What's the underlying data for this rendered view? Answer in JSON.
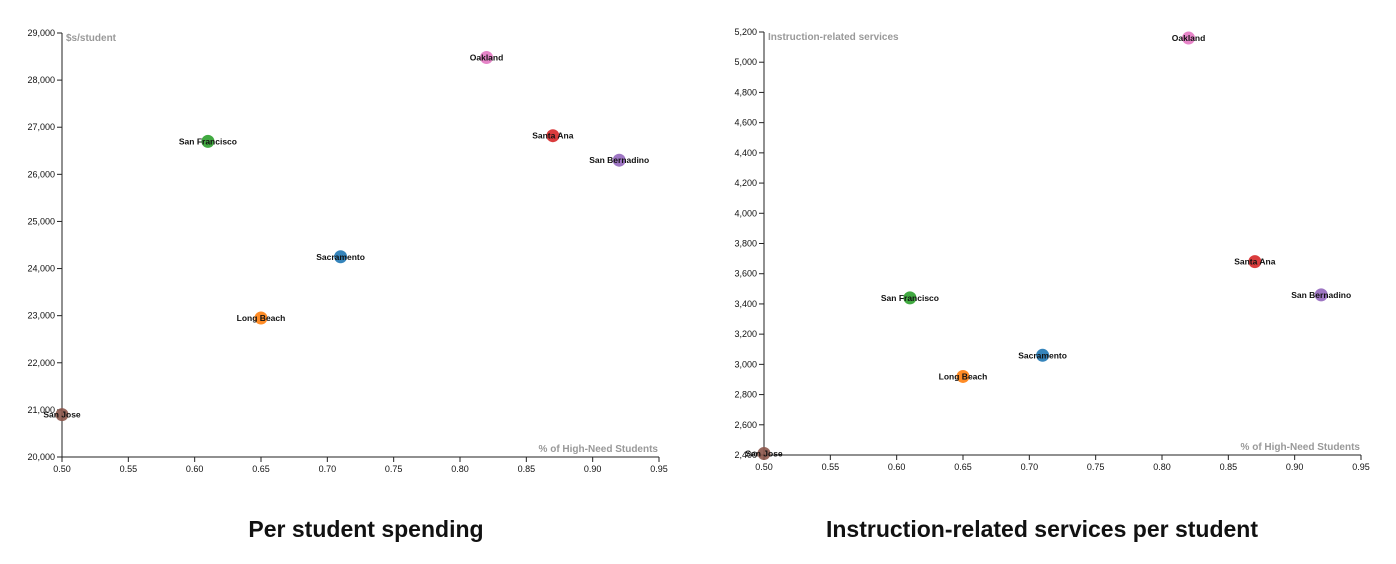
{
  "colors": {
    "Oakland": "#e377c2",
    "Santa Ana": "#d62728",
    "San Bernadino": "#9467bd",
    "San Francisco": "#2ca02c",
    "Sacramento": "#1f77b4",
    "Long Beach": "#ff7f0e",
    "San Jose": "#8c564b"
  },
  "captions": {
    "left": "Per student spending",
    "right": "Instruction-related services per student"
  },
  "chart_data": [
    {
      "type": "scatter",
      "title": "Per student spending",
      "xlabel": "% of High-Need Students",
      "ylabel": "$s/student",
      "xlim": [
        0.5,
        0.95
      ],
      "ylim": [
        20000,
        29000
      ],
      "x_ticks": [
        "0.50",
        "0.55",
        "0.60",
        "0.65",
        "0.70",
        "0.75",
        "0.80",
        "0.85",
        "0.90",
        "0.95"
      ],
      "y_ticks": [
        "20,000",
        "21,000",
        "22,000",
        "23,000",
        "24,000",
        "25,000",
        "26,000",
        "27,000",
        "28,000",
        "29,000"
      ],
      "points": [
        {
          "label": "Oakland",
          "x": 0.82,
          "y": 28480
        },
        {
          "label": "Santa Ana",
          "x": 0.87,
          "y": 26820
        },
        {
          "label": "San Bernadino",
          "x": 0.92,
          "y": 26300
        },
        {
          "label": "San Francisco",
          "x": 0.61,
          "y": 26700
        },
        {
          "label": "Sacramento",
          "x": 0.71,
          "y": 24250
        },
        {
          "label": "Long Beach",
          "x": 0.65,
          "y": 22950
        },
        {
          "label": "San Jose",
          "x": 0.5,
          "y": 20900
        }
      ]
    },
    {
      "type": "scatter",
      "title": "Instruction-related services per student",
      "xlabel": "% of High-Need Students",
      "ylabel": "Instruction-related services",
      "xlim": [
        0.5,
        0.95
      ],
      "ylim": [
        2400,
        5200
      ],
      "x_ticks": [
        "0.50",
        "0.55",
        "0.60",
        "0.65",
        "0.70",
        "0.75",
        "0.80",
        "0.85",
        "0.90",
        "0.95"
      ],
      "y_ticks": [
        "2,400",
        "2,600",
        "2,800",
        "3,000",
        "3,200",
        "3,400",
        "3,600",
        "3,800",
        "4,000",
        "4,200",
        "4,400",
        "4,600",
        "4,800",
        "5,000",
        "5,200"
      ],
      "points": [
        {
          "label": "Oakland",
          "x": 0.82,
          "y": 5160
        },
        {
          "label": "Santa Ana",
          "x": 0.87,
          "y": 3680
        },
        {
          "label": "San Bernadino",
          "x": 0.92,
          "y": 3460
        },
        {
          "label": "San Francisco",
          "x": 0.61,
          "y": 3440
        },
        {
          "label": "Sacramento",
          "x": 0.71,
          "y": 3060
        },
        {
          "label": "Long Beach",
          "x": 0.65,
          "y": 2920
        },
        {
          "label": "San Jose",
          "x": 0.5,
          "y": 2410
        }
      ]
    }
  ]
}
